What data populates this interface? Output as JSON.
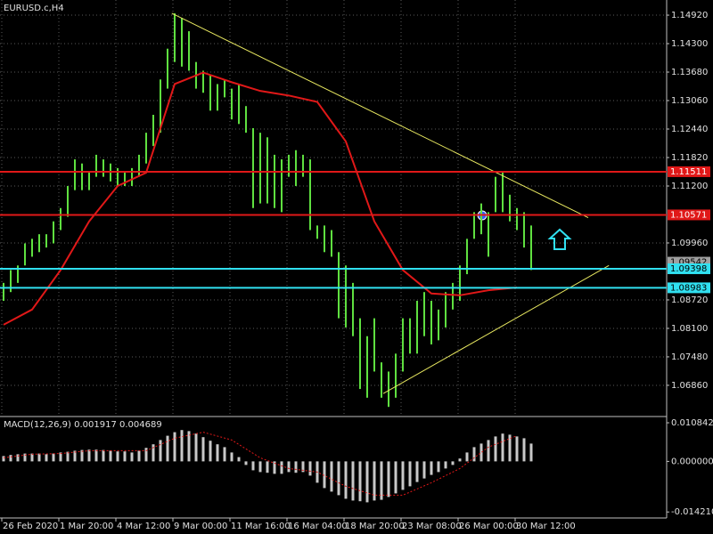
{
  "chart_data": [
    {
      "type": "ohlc",
      "title": "EURUSD.c,H4",
      "color": "#5fe040",
      "xlim": [
        -0.5,
        93
      ],
      "xticks": [
        {
          "value": -0.25,
          "label": "26 Feb 2020"
        },
        {
          "value": 7.75,
          "label": "1 Mar 20:00"
        },
        {
          "value": 15.75,
          "label": "4 Mar 12:00"
        },
        {
          "value": 23.75,
          "label": "9 Mar 00:00"
        },
        {
          "value": 31.75,
          "label": "11 Mar 16:00"
        },
        {
          "value": 39.75,
          "label": "16 Mar 04:00"
        },
        {
          "value": 47.75,
          "label": "18 Mar 20:00"
        },
        {
          "value": 55.75,
          "label": "23 Mar 08:00"
        },
        {
          "value": 63.75,
          "label": "26 Mar 00:00"
        },
        {
          "value": 71.75,
          "label": "30 Mar 12:00"
        }
      ],
      "ylim": [
        1.062,
        1.1525
      ],
      "yticks": [
        {
          "value": 1.1492,
          "label": "1.14920"
        },
        {
          "value": 1.143,
          "label": "1.14300"
        },
        {
          "value": 1.1368,
          "label": "1.13680"
        },
        {
          "value": 1.1306,
          "label": "1.13060"
        },
        {
          "value": 1.1244,
          "label": "1.12440"
        },
        {
          "value": 1.1182,
          "label": "1.11820"
        },
        {
          "value": 1.112,
          "label": "1.11200"
        },
        {
          "value": 1.0996,
          "label": "1.09960"
        },
        {
          "value": 1.0872,
          "label": "1.08720"
        },
        {
          "value": 1.081,
          "label": "1.08100"
        },
        {
          "value": 1.0748,
          "label": "1.07480"
        },
        {
          "value": 1.0686,
          "label": "1.06860"
        }
      ],
      "grid": true,
      "high": [
        1.0909,
        1.0937,
        1.0947,
        1.0995,
        1.1005,
        1.1015,
        1.1015,
        1.1043,
        1.1072,
        1.112,
        1.1178,
        1.1169,
        1.1149,
        1.1188,
        1.1178,
        1.1169,
        1.1159,
        1.1149,
        1.1159,
        1.1188,
        1.1236,
        1.1275,
        1.1352,
        1.1419,
        1.1496,
        1.1486,
        1.1457,
        1.139,
        1.1371,
        1.1361,
        1.1342,
        1.1352,
        1.1332,
        1.1342,
        1.1294,
        1.1246,
        1.1236,
        1.1226,
        1.1188,
        1.1178,
        1.1188,
        1.1198,
        1.1188,
        1.1178,
        1.1034,
        1.1034,
        1.1024,
        1.0976,
        1.0947,
        1.0909,
        1.0832,
        1.0793,
        1.0832,
        1.0736,
        1.0716,
        1.0755,
        1.0832,
        1.0832,
        1.087,
        1.0889,
        1.087,
        1.0851,
        1.0889,
        1.0909,
        1.0947,
        1.1005,
        1.1063,
        1.1082,
        1.1063,
        1.114,
        1.1149,
        1.1101,
        1.1072,
        1.1063,
        1.1034
      ],
      "low": [
        1.087,
        1.0889,
        1.0909,
        1.0947,
        1.0966,
        1.0976,
        1.0986,
        1.0995,
        1.1024,
        1.1053,
        1.1111,
        1.1111,
        1.1111,
        1.114,
        1.114,
        1.113,
        1.112,
        1.112,
        1.112,
        1.114,
        1.1169,
        1.1207,
        1.1236,
        1.1332,
        1.139,
        1.138,
        1.1371,
        1.1332,
        1.1323,
        1.1284,
        1.1284,
        1.1313,
        1.1265,
        1.1255,
        1.1236,
        1.1072,
        1.1082,
        1.1082,
        1.1072,
        1.1063,
        1.114,
        1.112,
        1.114,
        1.1024,
        1.1005,
        1.0976,
        1.0966,
        1.0832,
        1.0812,
        1.0793,
        1.0678,
        1.0659,
        1.0716,
        1.0659,
        1.0639,
        1.0659,
        1.0716,
        1.0755,
        1.0755,
        1.0793,
        1.0775,
        1.0784,
        1.0812,
        1.0851,
        1.087,
        1.0928,
        1.1005,
        1.1015,
        1.0966,
        1.1063,
        1.1063,
        1.1043,
        1.1024,
        1.0986,
        1.0937
      ],
      "moving_average": {
        "color": "#e01818",
        "x": [
          0,
          4,
          8,
          12,
          16,
          20,
          24,
          28,
          32,
          36,
          40,
          44,
          48,
          52,
          56,
          60,
          64,
          68,
          72
        ],
        "values": [
          1.0818,
          1.0851,
          1.0937,
          1.1043,
          1.112,
          1.1149,
          1.1342,
          1.1367,
          1.1346,
          1.1327,
          1.1317,
          1.1303,
          1.1217,
          1.1043,
          1.0937,
          1.0886,
          1.0882,
          1.0893,
          1.0899
        ]
      },
      "levels": [
        {
          "value": 1.11511,
          "color": "#e01818"
        },
        {
          "value": 1.10571,
          "color": "#e01818"
        },
        {
          "value": 1.09542,
          "color": "#a0a0a0"
        },
        {
          "value": 1.09398,
          "color": "#30e0f0"
        },
        {
          "value": 1.08983,
          "color": "#30e0f0"
        }
      ],
      "trendlines": [
        {
          "color": "#e8e860",
          "x": [
            23.6,
            82
          ],
          "values": [
            1.1496,
            1.1051
          ]
        },
        {
          "color": "#e8e860",
          "x": [
            53.25,
            84.9
          ],
          "values": [
            1.0668,
            1.0947
          ]
        }
      ]
    },
    {
      "type": "macd",
      "title": "MACD(12,26,9) 0.001917 0.004689",
      "color": "#c8c8c8",
      "ylim": [
        -0.0159,
        0.0121
      ],
      "yticks": [
        0.010842,
        {
          "value": 0,
          "label": "0.000000"
        },
        {
          "value": -0.01421,
          "label": "-0.014210"
        }
      ],
      "values": [
        0.0015,
        0.0018,
        0.002,
        0.0022,
        0.0022,
        0.0022,
        0.002,
        0.0022,
        0.0025,
        0.0027,
        0.003,
        0.0032,
        0.0033,
        0.0033,
        0.0032,
        0.003,
        0.0028,
        0.0028,
        0.0025,
        0.003,
        0.0038,
        0.0048,
        0.006,
        0.0072,
        0.0082,
        0.0088,
        0.0085,
        0.0078,
        0.0068,
        0.0058,
        0.0048,
        0.004,
        0.0025,
        0.0012,
        -0.001,
        -0.0025,
        -0.003,
        -0.0032,
        -0.0035,
        -0.0035,
        -0.003,
        -0.0032,
        -0.003,
        -0.004,
        -0.006,
        -0.0075,
        -0.0085,
        -0.0095,
        -0.0105,
        -0.011,
        -0.0112,
        -0.0115,
        -0.011,
        -0.0108,
        -0.01,
        -0.009,
        -0.008,
        -0.007,
        -0.0058,
        -0.0048,
        -0.0038,
        -0.003,
        -0.002,
        -0.001,
        0.0008,
        0.0025,
        0.004,
        0.005,
        0.006,
        0.007,
        0.0078,
        0.0075,
        0.007,
        0.0065,
        0.005
      ],
      "signal": {
        "color": "#e01818",
        "x": [
          0,
          4,
          8,
          12,
          16,
          20,
          24,
          28,
          32,
          36,
          40,
          44,
          48,
          52,
          56,
          60,
          64,
          68,
          72
        ],
        "values": [
          0.001,
          0.002,
          0.0022,
          0.003,
          0.003,
          0.003,
          0.0065,
          0.0082,
          0.006,
          0.001,
          -0.002,
          -0.003,
          -0.007,
          -0.0095,
          -0.0095,
          -0.006,
          -0.002,
          0.004,
          0.0072
        ]
      }
    }
  ]
}
